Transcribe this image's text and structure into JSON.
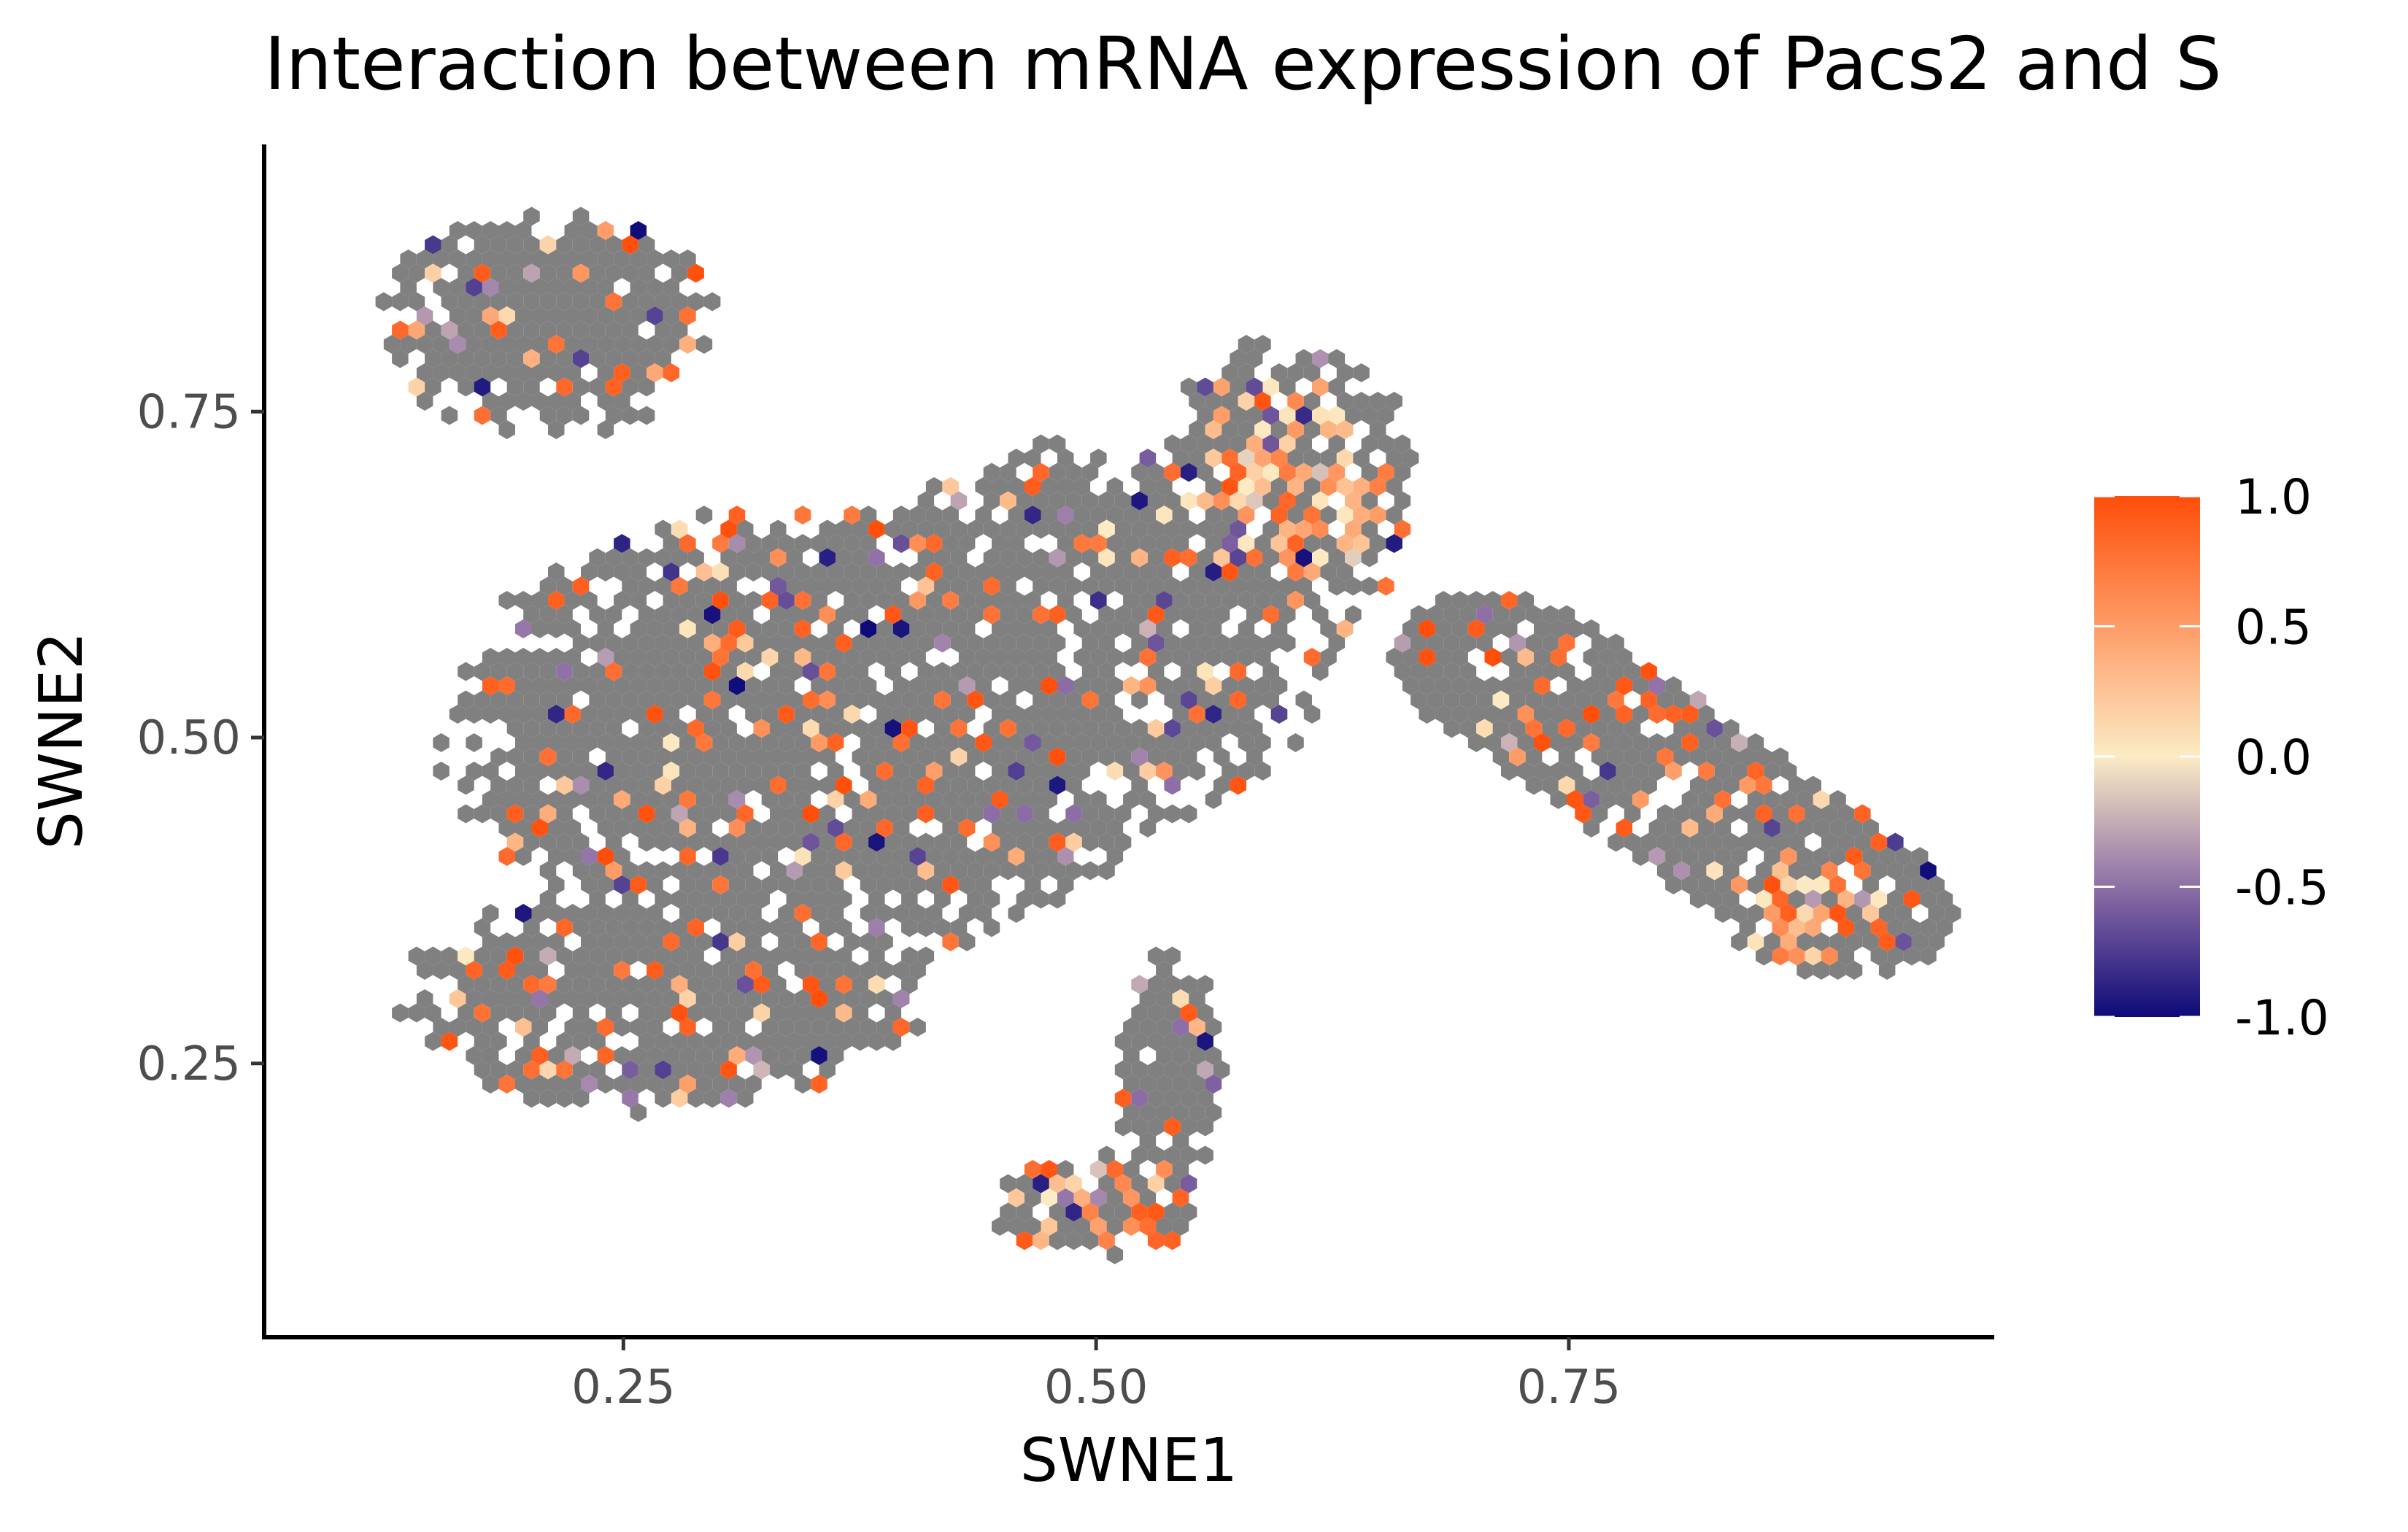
{
  "chart_data": {
    "type": "hexbin",
    "title": "Interaction between mRNA expression of Pacs2 and S",
    "xlabel": "SWNE1",
    "ylabel": "SWNE2",
    "xlim": [
      0.06,
      0.975
    ],
    "ylim": [
      0.04,
      0.955
    ],
    "x_ticks": [
      0.25,
      0.5,
      0.75
    ],
    "x_tick_labels": [
      "0.25",
      "0.50",
      "0.75"
    ],
    "y_ticks": [
      0.25,
      0.5,
      0.75
    ],
    "y_tick_labels": [
      "0.25",
      "0.50",
      "0.75"
    ],
    "grid": false,
    "legend": {
      "position": "right",
      "type": "colorbar",
      "title": "",
      "range": [
        -1.0,
        1.0
      ],
      "ticks": [
        1.0,
        0.5,
        0.0,
        -0.5,
        -1.0
      ],
      "tick_labels": [
        "1.0",
        "0.5",
        "0.0",
        "-0.5",
        "-1.0"
      ],
      "colors": {
        "low": "#0d0a78",
        "mid": "#fcebc4",
        "high": "#ff4d0a",
        "missing": "#808080"
      }
    },
    "regions": [
      {
        "name": "upper-left",
        "shape": "ellipse",
        "cx": 0.21,
        "cy": 0.82,
        "rx": 0.09,
        "ry": 0.09
      },
      {
        "name": "main-body",
        "shape": "ellipse",
        "cx": 0.35,
        "cy": 0.5,
        "rx": 0.2,
        "ry": 0.18
      },
      {
        "name": "lower-left",
        "shape": "ellipse",
        "cx": 0.27,
        "cy": 0.3,
        "rx": 0.14,
        "ry": 0.09
      },
      {
        "name": "upper-middle",
        "shape": "ellipse",
        "cx": 0.5,
        "cy": 0.58,
        "rx": 0.13,
        "ry": 0.15
      },
      {
        "name": "upper-right-cluster",
        "shape": "ellipse",
        "cx": 0.6,
        "cy": 0.69,
        "rx": 0.07,
        "ry": 0.12
      },
      {
        "name": "stem",
        "shape": "ellipse",
        "cx": 0.54,
        "cy": 0.24,
        "rx": 0.03,
        "ry": 0.1
      },
      {
        "name": "bottom-cluster",
        "shape": "ellipse",
        "cx": 0.5,
        "cy": 0.14,
        "rx": 0.06,
        "ry": 0.04
      },
      {
        "name": "right-arm",
        "shape": "band",
        "x0": 0.71,
        "y0": 0.56,
        "x1": 0.9,
        "y1": 0.37,
        "width": 0.055
      },
      {
        "name": "right-tip",
        "shape": "ellipse",
        "cx": 0.88,
        "cy": 0.37,
        "rx": 0.05,
        "ry": 0.05
      }
    ]
  }
}
